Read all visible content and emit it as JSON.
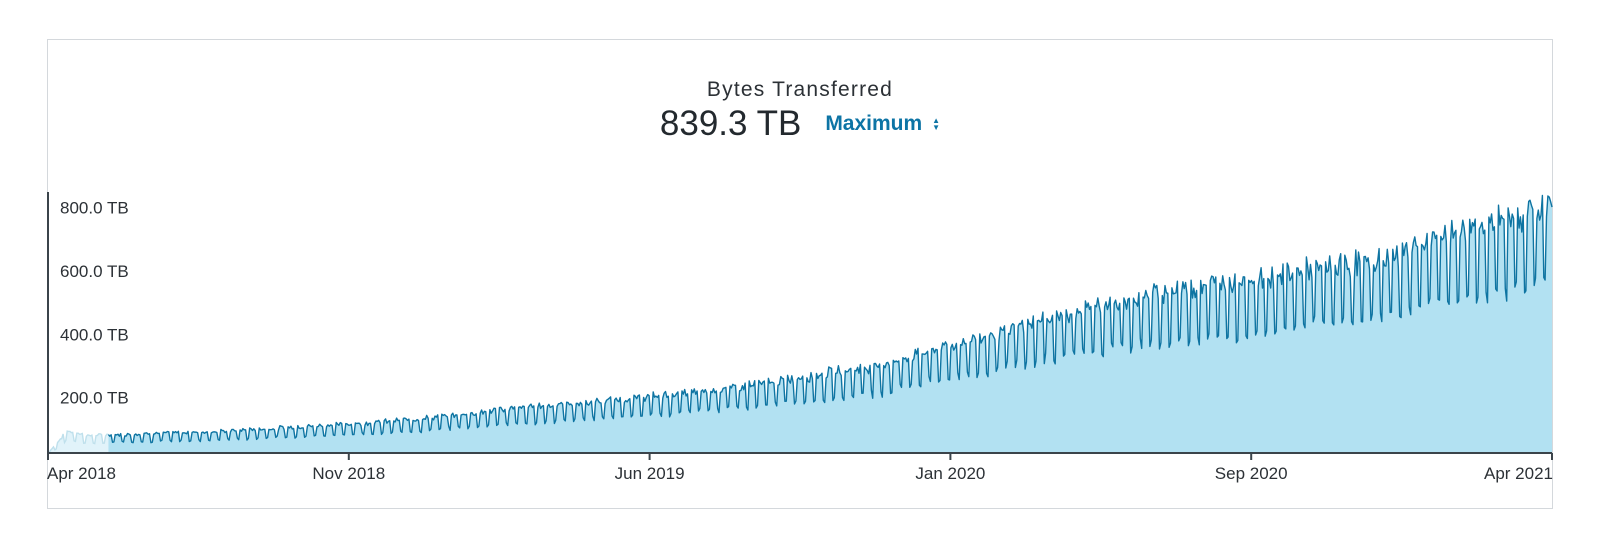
{
  "header": {
    "title": "Bytes Transferred",
    "total": "839.3 TB",
    "metric_select": "Maximum"
  },
  "colors": {
    "line": "#0e74a2",
    "fill": "#b2e1f2",
    "fill_faded": "#e1f3fa",
    "line_faded": "#bfe0ec",
    "axis": "#3b444b"
  },
  "chart_data": {
    "type": "area",
    "title": "Bytes Transferred",
    "xlabel": "",
    "ylabel": "",
    "y_unit": "TB",
    "ylim": [
      25,
      840
    ],
    "y_ticks": [
      200,
      400,
      600,
      800
    ],
    "y_tick_labels": [
      "200.0 TB",
      "400.0 TB",
      "600.0 TB",
      "800.0 TB"
    ],
    "x_range": [
      "2018-04-01",
      "2021-04-01"
    ],
    "x_tick_labels": [
      "Apr 2018",
      "Nov 2018",
      "Jun 2019",
      "Jan 2020",
      "Sep 2020",
      "Apr 2021"
    ],
    "grid": false,
    "faded_until": "2018-05-15",
    "series": [
      {
        "values_note_free": true,
        "points": [
          [
            "2018-04-01",
            25
          ],
          [
            "2018-04-15",
            98
          ],
          [
            "2018-05-01",
            82
          ],
          [
            "2018-05-15",
            85
          ],
          [
            "2018-06-01",
            88
          ],
          [
            "2018-07-01",
            92
          ],
          [
            "2018-08-01",
            96
          ],
          [
            "2018-09-01",
            104
          ],
          [
            "2018-10-01",
            112
          ],
          [
            "2018-11-01",
            120
          ],
          [
            "2018-12-01",
            128
          ],
          [
            "2019-01-01",
            140
          ],
          [
            "2019-02-01",
            155
          ],
          [
            "2019-03-01",
            170
          ],
          [
            "2019-04-01",
            182
          ],
          [
            "2019-05-01",
            192
          ],
          [
            "2019-06-01",
            205
          ],
          [
            "2019-07-01",
            218
          ],
          [
            "2019-08-01",
            235
          ],
          [
            "2019-09-01",
            252
          ],
          [
            "2019-10-01",
            272
          ],
          [
            "2019-11-01",
            295
          ],
          [
            "2019-12-01",
            315
          ],
          [
            "2020-01-01",
            360
          ],
          [
            "2020-02-01",
            395
          ],
          [
            "2020-03-01",
            430
          ],
          [
            "2020-04-01",
            470
          ],
          [
            "2020-05-01",
            500
          ],
          [
            "2020-06-01",
            530
          ],
          [
            "2020-07-01",
            560
          ],
          [
            "2020-08-01",
            580
          ],
          [
            "2020-09-01",
            595
          ],
          [
            "2020-10-01",
            625
          ],
          [
            "2020-11-01",
            640
          ],
          [
            "2020-12-01",
            660
          ],
          [
            "2021-01-01",
            720
          ],
          [
            "2021-02-01",
            760
          ],
          [
            "2021-03-01",
            790
          ],
          [
            "2021-04-01",
            839.3
          ]
        ],
        "weekly_trough_ratio": 0.66
      }
    ]
  }
}
